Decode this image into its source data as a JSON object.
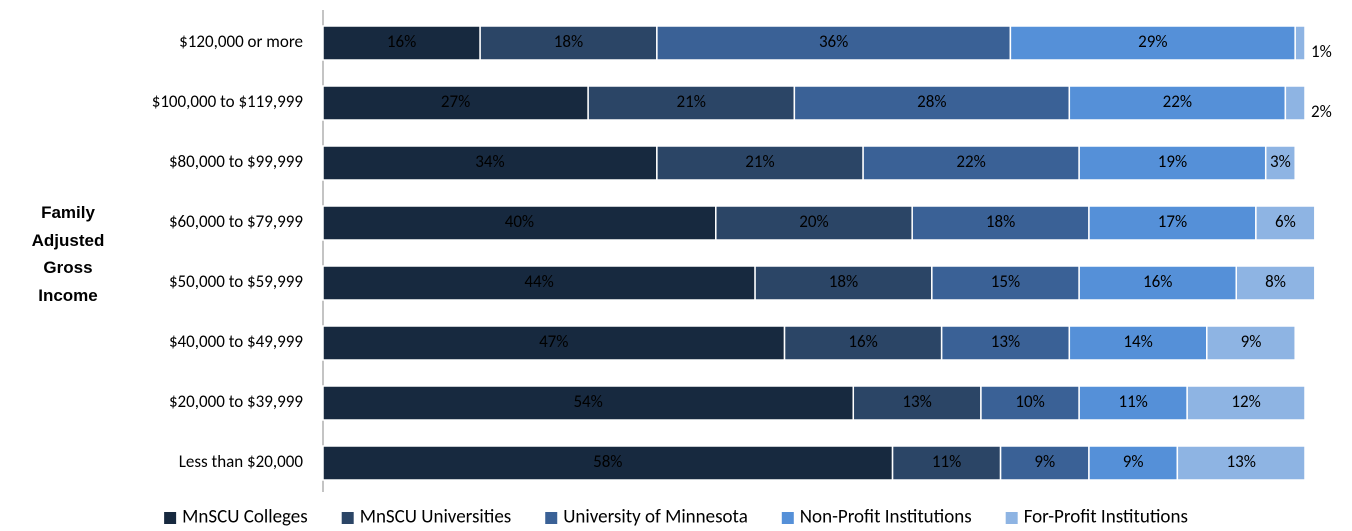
{
  "chart_data": {
    "type": "stacked_bar_horizontal",
    "y_axis_label": "Family Adjusted Gross Income",
    "categories": [
      "$120,000 or more",
      "$100,000 to $119,999",
      "$80,000 to $99,999",
      "$60,000 to $79,999",
      "$50,000 to $59,999",
      "$40,000 to $49,999",
      "$20,000 to $39,999",
      "Less than $20,000"
    ],
    "xlim": [
      0,
      100
    ],
    "legend": "bottom",
    "series": [
      {
        "name": "MnSCU Colleges",
        "color": "#17293f",
        "label_color": "#ffffff",
        "values": [
          16,
          27,
          34,
          40,
          44,
          47,
          54,
          58
        ],
        "value_labels": [
          "16%",
          "27%",
          "34%",
          "40%",
          "44%",
          "47%",
          "54%",
          "58%"
        ]
      },
      {
        "name": "MnSCU Universities",
        "color": "#2b4566",
        "label_color": "#ffffff",
        "values": [
          18,
          21,
          21,
          20,
          18,
          16,
          13,
          11
        ],
        "value_labels": [
          "18%",
          "21%",
          "21%",
          "20%",
          "18%",
          "16%",
          "13%",
          "11%"
        ]
      },
      {
        "name": "University of Minnesota",
        "color": "#3a6196",
        "label_color": "#ffffff",
        "values": [
          36,
          28,
          22,
          18,
          15,
          13,
          10,
          9
        ],
        "value_labels": [
          "36%",
          "28%",
          "22%",
          "18%",
          "15%",
          "13%",
          "10%",
          "9%"
        ]
      },
      {
        "name": "Non-Profit Institutions",
        "color": "#5590d8",
        "label_color": "#000000",
        "values": [
          29,
          22,
          19,
          17,
          16,
          14,
          11,
          9
        ],
        "value_labels": [
          "29%",
          "22%",
          "19%",
          "17%",
          "16%",
          "14%",
          "11%",
          "9%"
        ]
      },
      {
        "name": "For-Profit Institutions",
        "color": "#8eb4e3",
        "label_color": "#000000",
        "values": [
          1,
          2,
          3,
          6,
          8,
          9,
          12,
          13
        ],
        "value_labels": [
          "1%",
          "2%",
          "3%",
          "6%",
          "8%",
          "9%",
          "12%",
          "13%"
        ]
      }
    ]
  }
}
